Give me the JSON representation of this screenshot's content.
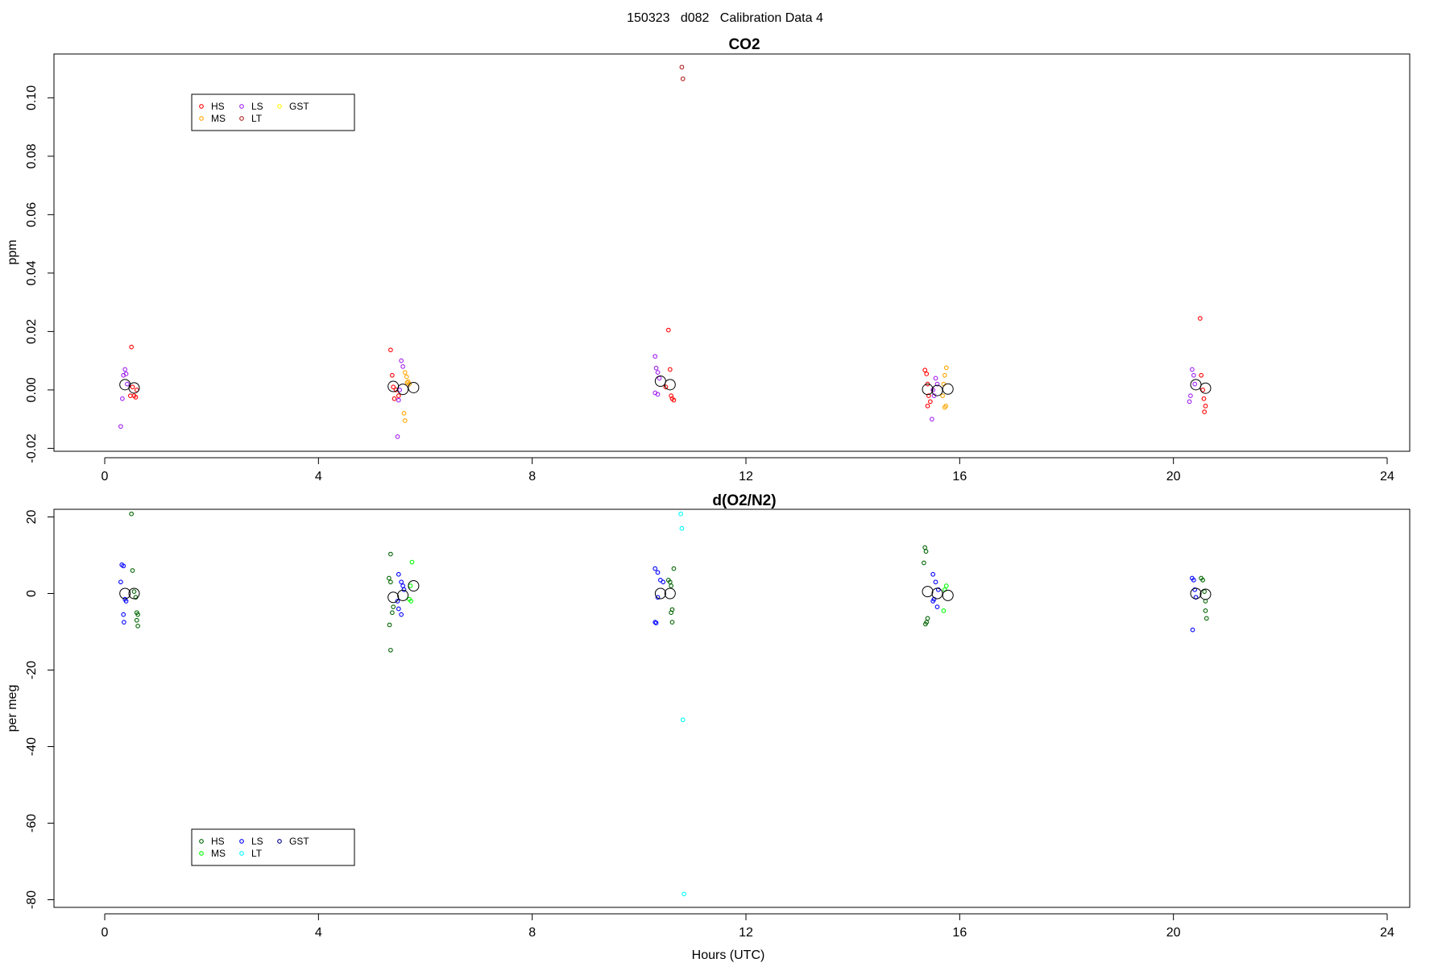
{
  "figure_title": "150323   d082   Calibration Data 4",
  "chart_data": [
    {
      "type": "scatter",
      "title": "CO2",
      "xlabel": "",
      "ylabel": "ppm",
      "xlim": [
        -0.9,
        24.5
      ],
      "ylim": [
        -0.021,
        0.115
      ],
      "x_ticks": [
        0,
        4,
        8,
        12,
        16,
        20,
        24
      ],
      "y_ticks": [
        -0.02,
        0.0,
        0.02,
        0.04,
        0.06,
        0.08,
        0.1
      ],
      "y_tick_labels": [
        "-0.02",
        "0.00",
        "0.02",
        "0.04",
        "0.06",
        "0.08",
        "0.10"
      ],
      "grid": false,
      "legend_position": "top-left",
      "series": [
        {
          "name": "HS",
          "color": "#ff0000",
          "points": [
            [
              0.5,
              0.0147
            ],
            [
              0.52,
              0.001
            ],
            [
              0.55,
              -0.002
            ],
            [
              0.58,
              -0.0025
            ],
            [
              0.6,
              0.0
            ],
            [
              0.48,
              -0.002
            ],
            [
              5.35,
              0.0137
            ],
            [
              5.38,
              0.005
            ],
            [
              5.42,
              -0.003
            ],
            [
              5.45,
              0.0
            ],
            [
              5.4,
              0.001
            ],
            [
              5.5,
              -0.002
            ],
            [
              10.55,
              0.0205
            ],
            [
              10.58,
              0.007
            ],
            [
              10.6,
              -0.002
            ],
            [
              10.62,
              -0.003
            ],
            [
              10.65,
              -0.0035
            ],
            [
              10.5,
              0.001
            ],
            [
              15.35,
              0.0068
            ],
            [
              15.38,
              0.0055
            ],
            [
              15.4,
              0.002
            ],
            [
              15.42,
              -0.002
            ],
            [
              15.45,
              -0.004
            ],
            [
              15.4,
              -0.0055
            ],
            [
              20.5,
              0.0245
            ],
            [
              20.52,
              0.005
            ],
            [
              20.55,
              0.0
            ],
            [
              20.57,
              -0.003
            ],
            [
              20.6,
              -0.0055
            ],
            [
              20.58,
              -0.0075
            ]
          ]
        },
        {
          "name": "MS",
          "color": "#ffa500",
          "points": [
            [
              5.65,
              0.0045
            ],
            [
              5.68,
              0.0028
            ],
            [
              5.7,
              0.002
            ],
            [
              5.62,
              0.006
            ],
            [
              5.66,
              0.0025
            ],
            [
              5.6,
              -0.008
            ],
            [
              5.62,
              -0.0105
            ],
            [
              15.75,
              0.0076
            ],
            [
              15.72,
              0.005
            ],
            [
              15.7,
              0.002
            ],
            [
              15.68,
              -0.002
            ],
            [
              15.72,
              -0.006
            ],
            [
              15.74,
              -0.0055
            ]
          ]
        },
        {
          "name": "LS",
          "color": "#a020f0",
          "points": [
            [
              0.35,
              0.005
            ],
            [
              0.38,
              0.007
            ],
            [
              0.4,
              0.0055
            ],
            [
              0.42,
              0.002
            ],
            [
              0.33,
              -0.003
            ],
            [
              0.3,
              -0.0125
            ],
            [
              5.55,
              0.01
            ],
            [
              5.58,
              0.008
            ],
            [
              5.52,
              0.0
            ],
            [
              5.5,
              -0.0035
            ],
            [
              5.48,
              -0.016
            ],
            [
              10.3,
              0.0115
            ],
            [
              10.32,
              0.0075
            ],
            [
              10.35,
              0.006
            ],
            [
              10.38,
              0.004
            ],
            [
              10.3,
              -0.001
            ],
            [
              10.35,
              -0.0015
            ],
            [
              15.55,
              0.004
            ],
            [
              15.58,
              0.002
            ],
            [
              15.5,
              0.0
            ],
            [
              15.52,
              -0.002
            ],
            [
              15.48,
              -0.01
            ],
            [
              20.35,
              0.007
            ],
            [
              20.38,
              0.005
            ],
            [
              20.4,
              0.002
            ],
            [
              20.32,
              -0.002
            ],
            [
              20.3,
              -0.004
            ]
          ]
        },
        {
          "name": "LT",
          "color": "#b22222",
          "points": [
            [
              10.8,
              0.1105
            ],
            [
              10.82,
              0.1065
            ]
          ]
        },
        {
          "name": "GST",
          "color": "#ffff00",
          "points": []
        }
      ],
      "averages": [
        [
          0.38,
          0.0018
        ],
        [
          0.55,
          0.0007
        ],
        [
          5.4,
          0.0012
        ],
        [
          5.58,
          0.0002
        ],
        [
          5.78,
          0.0008
        ],
        [
          10.4,
          0.003
        ],
        [
          10.58,
          0.0018
        ],
        [
          15.4,
          0.0002
        ],
        [
          15.58,
          -0.0002
        ],
        [
          15.78,
          0.0003
        ],
        [
          20.42,
          0.0018
        ],
        [
          20.6,
          0.0006
        ]
      ]
    },
    {
      "type": "scatter",
      "title": "d(O2/N2)",
      "xlabel": "Hours (UTC)",
      "ylabel": "per meg",
      "xlim": [
        -0.9,
        24.5
      ],
      "ylim": [
        -82,
        22
      ],
      "x_ticks": [
        0,
        4,
        8,
        12,
        16,
        20,
        24
      ],
      "y_ticks": [
        -80,
        -60,
        -40,
        -20,
        0,
        20
      ],
      "y_tick_labels": [
        "-80",
        "-60",
        "-40",
        "-20",
        "0",
        "20"
      ],
      "grid": false,
      "legend_position": "bottom-left",
      "series": [
        {
          "name": "HS",
          "color": "#006400",
          "points": [
            [
              0.5,
              20.8
            ],
            [
              0.52,
              6.0
            ],
            [
              0.55,
              0.5
            ],
            [
              0.58,
              -1.0
            ],
            [
              0.6,
              -5.0
            ],
            [
              0.62,
              -5.5
            ],
            [
              0.6,
              -7.0
            ],
            [
              0.62,
              -8.5
            ],
            [
              5.35,
              10.3
            ],
            [
              5.32,
              4.0
            ],
            [
              5.35,
              3.0
            ],
            [
              5.4,
              -3.5
            ],
            [
              5.38,
              -5.0
            ],
            [
              5.33,
              -8.2
            ],
            [
              5.35,
              -14.8
            ],
            [
              10.55,
              3.5
            ],
            [
              10.58,
              3.0
            ],
            [
              10.6,
              2.0
            ],
            [
              10.62,
              -4.2
            ],
            [
              10.6,
              -5.0
            ],
            [
              10.62,
              -7.5
            ],
            [
              10.65,
              6.5
            ],
            [
              15.35,
              12.0
            ],
            [
              15.37,
              11.0
            ],
            [
              15.33,
              8.0
            ],
            [
              15.4,
              -6.5
            ],
            [
              15.38,
              -7.5
            ],
            [
              15.36,
              -8.0
            ],
            [
              20.52,
              4.0
            ],
            [
              20.55,
              3.5
            ],
            [
              20.58,
              0.5
            ],
            [
              20.6,
              -4.5
            ],
            [
              20.62,
              -6.5
            ],
            [
              20.6,
              -2.0
            ]
          ]
        },
        {
          "name": "MS",
          "color": "#00ff00",
          "points": [
            [
              5.75,
              8.2
            ],
            [
              5.72,
              2.0
            ],
            [
              5.7,
              -1.5
            ],
            [
              5.73,
              -2.0
            ],
            [
              15.75,
              2.0
            ],
            [
              15.72,
              1.0
            ],
            [
              15.7,
              -4.5
            ]
          ]
        },
        {
          "name": "LS",
          "color": "#0000ff",
          "points": [
            [
              0.32,
              7.5
            ],
            [
              0.35,
              7.2
            ],
            [
              0.3,
              3.0
            ],
            [
              0.38,
              -1.5
            ],
            [
              0.4,
              -2.0
            ],
            [
              0.35,
              -5.5
            ],
            [
              0.36,
              -7.5
            ],
            [
              5.5,
              5.0
            ],
            [
              5.55,
              3.0
            ],
            [
              5.58,
              2.0
            ],
            [
              5.6,
              1.0
            ],
            [
              5.48,
              -2.0
            ],
            [
              5.5,
              -4.0
            ],
            [
              5.55,
              -5.5
            ],
            [
              10.3,
              6.5
            ],
            [
              10.35,
              5.5
            ],
            [
              10.4,
              3.5
            ],
            [
              10.45,
              3.0
            ],
            [
              10.35,
              -1.0
            ],
            [
              10.3,
              -7.5
            ],
            [
              10.32,
              -7.7
            ],
            [
              15.5,
              5.0
            ],
            [
              15.55,
              3.0
            ],
            [
              15.6,
              1.0
            ],
            [
              15.52,
              -1.5
            ],
            [
              15.5,
              -2.0
            ],
            [
              15.58,
              -3.5
            ],
            [
              20.35,
              4.0
            ],
            [
              20.38,
              3.5
            ],
            [
              20.4,
              1.0
            ],
            [
              20.42,
              -1.0
            ],
            [
              20.36,
              -9.5
            ]
          ]
        },
        {
          "name": "LT",
          "color": "#00ffff",
          "points": [
            [
              10.78,
              20.8
            ],
            [
              10.8,
              17.0
            ],
            [
              10.82,
              -33.0
            ],
            [
              10.84,
              -78.5
            ]
          ]
        },
        {
          "name": "GST",
          "color": "#00008b",
          "points": []
        }
      ],
      "averages": [
        [
          0.38,
          0.0
        ],
        [
          0.55,
          0.0
        ],
        [
          5.4,
          -1.0
        ],
        [
          5.58,
          -0.5
        ],
        [
          5.78,
          2.0
        ],
        [
          10.4,
          0.0
        ],
        [
          10.58,
          0.0
        ],
        [
          15.4,
          0.5
        ],
        [
          15.58,
          0.0
        ],
        [
          15.78,
          -0.5
        ],
        [
          20.42,
          0.0
        ],
        [
          20.6,
          -0.2
        ]
      ]
    }
  ]
}
